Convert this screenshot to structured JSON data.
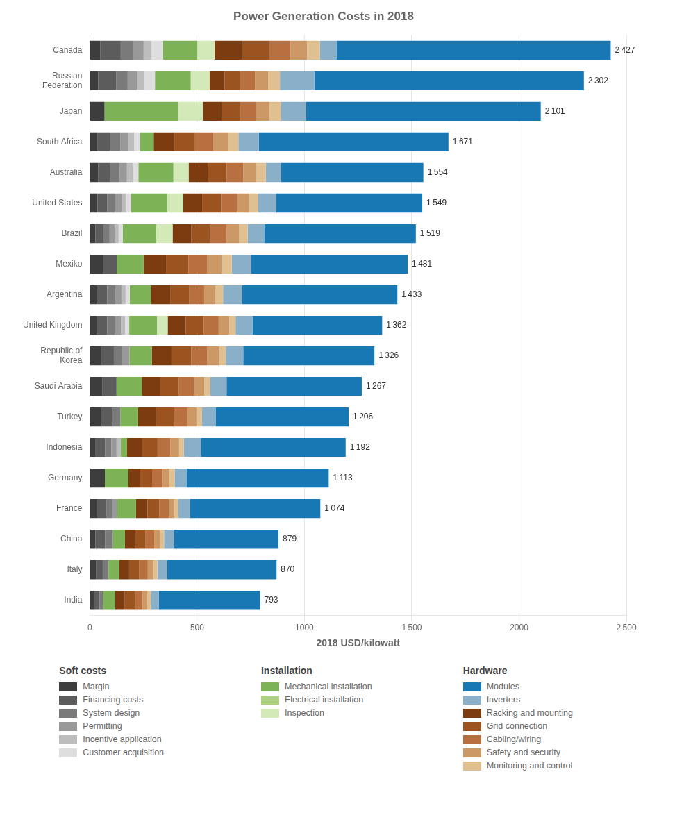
{
  "chart_data": {
    "type": "bar",
    "orientation": "horizontal",
    "stacked": true,
    "grid": true,
    "title": "Power Generation Costs in 2018",
    "xlabel": "2018 USD/kilowatt",
    "categories": [
      "Canada",
      "Russian\nFederation",
      "Japan",
      "South Africa",
      "Australia",
      "United States",
      "Brazil",
      "Mexiko",
      "Argentina",
      "United Kingdom",
      "Republic of\nKorea",
      "Saudi Arabia",
      "Turkey",
      "Indonesia",
      "Germany",
      "France",
      "China",
      "Italy",
      "India"
    ],
    "series": [
      {
        "name": "Margin",
        "color": "#3d3d3d",
        "values": [
          47.96,
          39.15,
          68.37,
          36.64,
          39.49,
          35.69,
          26.41,
          62.7,
          32.27,
          32.38,
          52.99,
          59.1,
          51.39,
          27.29,
          70,
          34.36,
          25.58,
          30,
          20
        ]
      },
      {
        "name": "Financing costs",
        "color": "#5c5c5c",
        "values": [
          95.93,
          83.19,
          0,
          57.58,
          54.3,
          45.89,
          36.97,
          62.7,
          48.41,
          48.57,
          58.88,
          65.0,
          51.39,
          43.66,
          0,
          44.18,
          46.05,
          30,
          25
        ]
      },
      {
        "name": "System design",
        "color": "#7a7a7a",
        "values": [
          58.62,
          53.83,
          0,
          47.11,
          44.43,
          35.69,
          28.52,
          0,
          37.65,
          34.54,
          41.22,
          0,
          39.97,
          29.47,
          0,
          26.51,
          35.81,
          27,
          17
        ]
      },
      {
        "name": "Permitting",
        "color": "#999999",
        "values": [
          47.96,
          44.04,
          0,
          36.64,
          34.56,
          30.59,
          23.24,
          0,
          29.05,
          29.14,
          31.8,
          0,
          0,
          24.01,
          0,
          21.6,
          0,
          0,
          0
        ]
      },
      {
        "name": "Incentive application",
        "color": "#bdbdbd",
        "values": [
          37.31,
          34.26,
          0,
          28.27,
          26.66,
          22.43,
          19.01,
          0,
          19.36,
          19.43,
          0,
          0,
          0,
          19.65,
          0,
          0,
          0,
          0,
          0
        ]
      },
      {
        "name": "Customer acquisition",
        "color": "#dedede",
        "values": [
          53.29,
          48.94,
          0,
          28.27,
          26.66,
          22.43,
          19.01,
          0,
          19.36,
          19.43,
          0,
          0,
          0,
          0,
          0,
          0,
          0,
          0,
          0
        ]
      },
      {
        "name": "Mechanical installation",
        "color": "#7db356",
        "values": [
          159.88,
          166.39,
          341.86,
          62.82,
          162.9,
          168.26,
          156.34,
          125.4,
          98.98,
          129.51,
          103.63,
          118.19,
          82.23,
          29.47,
          110,
          88.35,
          56.28,
          50,
          55
        ]
      },
      {
        "name": "Electrical installation",
        "color": "#aed17f",
        "values": [
          0,
          0,
          0,
          0,
          0,
          0,
          0,
          0,
          0,
          0,
          0,
          0,
          0,
          0,
          0,
          0,
          0,
          0,
          0
        ]
      },
      {
        "name": "Inspection",
        "color": "#d4e9b8",
        "values": [
          79.94,
          88.09,
          117.21,
          0,
          71.09,
          73.42,
          76.06,
          0,
          0,
          49.65,
          0,
          0,
          0,
          0,
          0,
          0,
          0,
          0,
          0
        ]
      },
      {
        "name": "Racking and mounting",
        "color": "#7d3c10",
        "values": [
          127.91,
          70.47,
          87.91,
          96.32,
          88.86,
          88.72,
          87.68,
          104.08,
          89.29,
          84.18,
          91.85,
          86.28,
          83.37,
          70.95,
          55,
          53.99,
          47.07,
          46,
          46
        ]
      },
      {
        "name": "Grid connection",
        "color": "#9b5420",
        "values": [
          127.91,
          70.47,
          87.91,
          96.32,
          88.86,
          88.72,
          87.68,
          104.08,
          89.29,
          84.18,
          91.85,
          86.28,
          83.37,
          70.95,
          55,
          53.99,
          47.07,
          46,
          46
        ]
      },
      {
        "name": "Cabling/wiring",
        "color": "#b87040",
        "values": [
          98.06,
          70.47,
          71.3,
          86.9,
          77.01,
          74.44,
          77.11,
          86.53,
          68.85,
          69.07,
          75.37,
          70.91,
          62.81,
          60.04,
          50,
          45.16,
          41.95,
          41,
          37
        ]
      },
      {
        "name": "Safety and security",
        "color": "#cc9966",
        "values": [
          77.81,
          62.64,
          62.51,
          67.01,
          59.24,
          56.09,
          58.1,
          68.97,
          53.79,
          49.65,
          54.17,
          48.46,
          42.26,
          40.39,
          32,
          26.51,
          27.63,
          27,
          23
        ]
      },
      {
        "name": "Monitoring and control",
        "color": "#e0c090",
        "values": [
          58.62,
          53.83,
          53.72,
          48.16,
          45.42,
          41.81,
          39.08,
          46.4,
          34.43,
          29.14,
          31.8,
          27.18,
          26.27,
          21.83,
          23,
          17.67,
          18.42,
          18,
          16
        ]
      },
      {
        "name": "Inverters",
        "color": "#8aafc8",
        "values": [
          77.81,
          160.51,
          116.23,
          95.28,
          72.07,
          83.62,
          77.11,
          91.54,
          88.22,
          78.78,
          81.26,
          75.64,
          62.81,
          79.68,
          55,
          53.99,
          47.07,
          46,
          37
        ]
      },
      {
        "name": "Modules",
        "color": "#1878b4",
        "values": [
          1277.99,
          1255.73,
          1093.97,
          883.66,
          662.47,
          681.19,
          706.68,
          728.59,
          724.03,
          604.37,
          611.18,
          629.95,
          620.13,
          674.59,
          663,
          607.68,
          486.06,
          509,
          471
        ]
      }
    ],
    "totals": [
      2427,
      2302,
      2101,
      1671,
      1554,
      1549,
      1519,
      1481,
      1433,
      1362,
      1326,
      1267,
      1206,
      1192,
      1113,
      1074,
      879,
      870,
      793
    ],
    "total_labels": [
      "2 427",
      "2 302",
      "2 101",
      "1 671",
      "1 554",
      "1 549",
      "1 519",
      "1 481",
      "1 433",
      "1 362",
      "1 326",
      "1 267",
      "1 206",
      "1 192",
      "1 113",
      "1 074",
      "879",
      "870",
      "793"
    ],
    "xlim": [
      0,
      2500
    ],
    "xticks": [
      0,
      500,
      1000,
      {
        "value": 1500,
        "label": "1 500"
      },
      2000,
      {
        "value": 2500,
        "label": "2 500"
      }
    ],
    "legend_groups": [
      {
        "title": "Soft costs",
        "items": [
          "Margin",
          "Financing costs",
          "System design",
          "Permitting",
          "Incentive application",
          "Customer acquisition"
        ]
      },
      {
        "title": "Installation",
        "items": [
          "Mechanical installation",
          "Electrical installation",
          "Inspection"
        ]
      },
      {
        "title": "Hardware",
        "items": [
          "Modules",
          "Inverters",
          "Racking and mounting",
          "Grid connection",
          "Cabling/wiring",
          "Safety and security",
          "Monitoring and control"
        ]
      }
    ]
  }
}
